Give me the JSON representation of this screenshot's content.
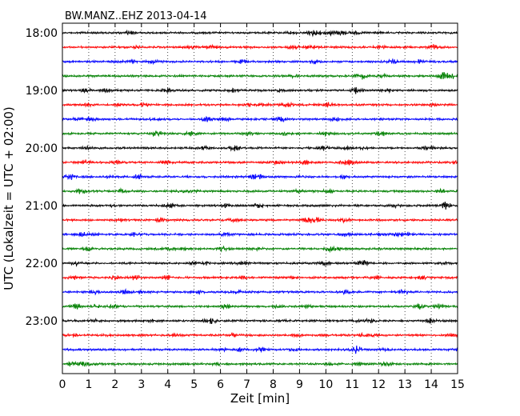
{
  "chart_data": {
    "type": "line",
    "title": "BW.MANZ..EHZ 2013-04-14",
    "xlabel": "Zeit  [min]",
    "ylabel": "UTC (Lokalzeit = UTC + 02:00)",
    "xlim": [
      0,
      15
    ],
    "x_ticks": [
      0,
      1,
      2,
      3,
      4,
      5,
      6,
      7,
      8,
      9,
      10,
      11,
      12,
      13,
      14,
      15
    ],
    "y_tick_labels": [
      "18:00",
      "19:00",
      "20:00",
      "21:00",
      "22:00",
      "23:00"
    ],
    "grid": "vertical dotted at each minute",
    "trace_interval_minutes": 15,
    "trace_colors": [
      "#000000",
      "#ff0000",
      "#0000ff",
      "#008000"
    ],
    "trace_start_times": [
      "18:00",
      "18:15",
      "18:30",
      "18:45",
      "19:00",
      "19:15",
      "19:30",
      "19:45",
      "20:00",
      "20:15",
      "20:30",
      "20:45",
      "21:00",
      "21:15",
      "21:30",
      "21:45",
      "22:00",
      "22:15",
      "22:30",
      "22:45",
      "23:00",
      "23:15",
      "23:30",
      "23:45"
    ]
  }
}
